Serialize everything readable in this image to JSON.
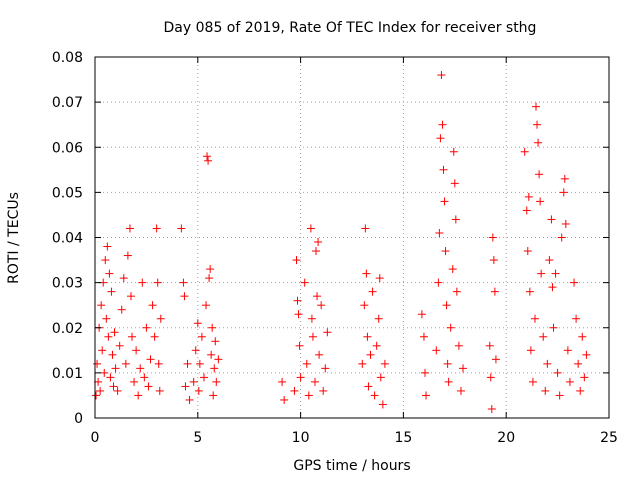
{
  "chart_data": {
    "type": "scatter",
    "title": "Day 085 of 2019, Rate Of TEC Index for receiver sthg",
    "xlabel": "GPS time / hours",
    "ylabel": "ROTI / TECUs",
    "xlim": [
      0,
      25
    ],
    "ylim": [
      0,
      0.08
    ],
    "xticks": [
      0,
      5,
      10,
      15,
      20,
      25
    ],
    "xtick_labels": [
      "0",
      "5",
      "10",
      "15",
      "20",
      "25"
    ],
    "yticks": [
      0,
      0.01,
      0.02,
      0.03,
      0.04,
      0.05,
      0.06,
      0.07,
      0.08
    ],
    "ytick_labels": [
      "0",
      "0.01",
      "0.02",
      "0.03",
      "0.04",
      "0.05",
      "0.06",
      "0.07",
      "0.08"
    ],
    "grid": true,
    "legend": "none",
    "marker": "+",
    "color": "#ff0000",
    "series": [
      {
        "name": "ROTI",
        "points": [
          [
            0.05,
            0.005
          ],
          [
            0.1,
            0.012
          ],
          [
            0.15,
            0.008
          ],
          [
            0.2,
            0.02
          ],
          [
            0.25,
            0.006
          ],
          [
            0.3,
            0.025
          ],
          [
            0.35,
            0.015
          ],
          [
            0.4,
            0.03
          ],
          [
            0.45,
            0.01
          ],
          [
            0.5,
            0.035
          ],
          [
            0.55,
            0.022
          ],
          [
            0.6,
            0.038
          ],
          [
            0.65,
            0.018
          ],
          [
            0.7,
            0.032
          ],
          [
            0.75,
            0.009
          ],
          [
            0.8,
            0.028
          ],
          [
            0.85,
            0.014
          ],
          [
            0.9,
            0.007
          ],
          [
            0.95,
            0.019
          ],
          [
            1.0,
            0.011
          ],
          [
            1.1,
            0.006
          ],
          [
            1.2,
            0.016
          ],
          [
            1.3,
            0.024
          ],
          [
            1.4,
            0.031
          ],
          [
            1.5,
            0.012
          ],
          [
            1.6,
            0.036
          ],
          [
            1.7,
            0.042
          ],
          [
            1.75,
            0.027
          ],
          [
            1.8,
            0.018
          ],
          [
            1.9,
            0.008
          ],
          [
            2.0,
            0.015
          ],
          [
            2.1,
            0.005
          ],
          [
            2.2,
            0.011
          ],
          [
            2.3,
            0.03
          ],
          [
            2.4,
            0.009
          ],
          [
            2.5,
            0.02
          ],
          [
            2.6,
            0.007
          ],
          [
            2.7,
            0.013
          ],
          [
            2.8,
            0.025
          ],
          [
            2.9,
            0.018
          ],
          [
            3.0,
            0.042
          ],
          [
            3.05,
            0.03
          ],
          [
            3.1,
            0.012
          ],
          [
            3.15,
            0.006
          ],
          [
            3.2,
            0.022
          ],
          [
            4.2,
            0.042
          ],
          [
            4.3,
            0.03
          ],
          [
            4.35,
            0.027
          ],
          [
            4.4,
            0.007
          ],
          [
            4.5,
            0.012
          ],
          [
            4.6,
            0.004
          ],
          [
            4.8,
            0.008
          ],
          [
            4.9,
            0.015
          ],
          [
            5.0,
            0.021
          ],
          [
            5.05,
            0.006
          ],
          [
            5.1,
            0.012
          ],
          [
            5.2,
            0.018
          ],
          [
            5.3,
            0.009
          ],
          [
            5.4,
            0.025
          ],
          [
            5.45,
            0.058
          ],
          [
            5.5,
            0.057
          ],
          [
            5.55,
            0.031
          ],
          [
            5.6,
            0.033
          ],
          [
            5.65,
            0.014
          ],
          [
            5.7,
            0.02
          ],
          [
            5.75,
            0.005
          ],
          [
            5.8,
            0.011
          ],
          [
            5.85,
            0.017
          ],
          [
            5.9,
            0.008
          ],
          [
            6.0,
            0.013
          ],
          [
            9.1,
            0.008
          ],
          [
            9.2,
            0.004
          ],
          [
            9.7,
            0.006
          ],
          [
            9.8,
            0.035
          ],
          [
            9.85,
            0.026
          ],
          [
            9.9,
            0.023
          ],
          [
            9.95,
            0.016
          ],
          [
            10.0,
            0.009
          ],
          [
            10.2,
            0.03
          ],
          [
            10.3,
            0.012
          ],
          [
            10.4,
            0.005
          ],
          [
            10.5,
            0.042
          ],
          [
            10.55,
            0.022
          ],
          [
            10.6,
            0.018
          ],
          [
            10.7,
            0.008
          ],
          [
            10.75,
            0.037
          ],
          [
            10.8,
            0.027
          ],
          [
            10.85,
            0.039
          ],
          [
            10.9,
            0.014
          ],
          [
            11.0,
            0.025
          ],
          [
            11.1,
            0.006
          ],
          [
            11.2,
            0.011
          ],
          [
            11.3,
            0.019
          ],
          [
            13.0,
            0.012
          ],
          [
            13.1,
            0.025
          ],
          [
            13.15,
            0.042
          ],
          [
            13.2,
            0.032
          ],
          [
            13.25,
            0.018
          ],
          [
            13.3,
            0.007
          ],
          [
            13.4,
            0.014
          ],
          [
            13.5,
            0.028
          ],
          [
            13.6,
            0.005
          ],
          [
            13.7,
            0.016
          ],
          [
            13.8,
            0.022
          ],
          [
            13.85,
            0.031
          ],
          [
            13.9,
            0.009
          ],
          [
            14.0,
            0.003
          ],
          [
            14.1,
            0.012
          ],
          [
            15.9,
            0.023
          ],
          [
            16.0,
            0.018
          ],
          [
            16.05,
            0.01
          ],
          [
            16.1,
            0.005
          ],
          [
            16.6,
            0.015
          ],
          [
            16.7,
            0.03
          ],
          [
            16.75,
            0.041
          ],
          [
            16.8,
            0.062
          ],
          [
            16.85,
            0.076
          ],
          [
            16.9,
            0.065
          ],
          [
            16.95,
            0.055
          ],
          [
            17.0,
            0.048
          ],
          [
            17.05,
            0.037
          ],
          [
            17.1,
            0.025
          ],
          [
            17.15,
            0.012
          ],
          [
            17.2,
            0.008
          ],
          [
            17.3,
            0.02
          ],
          [
            17.4,
            0.033
          ],
          [
            17.45,
            0.059
          ],
          [
            17.5,
            0.052
          ],
          [
            17.55,
            0.044
          ],
          [
            17.6,
            0.028
          ],
          [
            17.7,
            0.016
          ],
          [
            17.8,
            0.006
          ],
          [
            17.9,
            0.011
          ],
          [
            19.2,
            0.016
          ],
          [
            19.25,
            0.009
          ],
          [
            19.3,
            0.002
          ],
          [
            19.35,
            0.04
          ],
          [
            19.4,
            0.035
          ],
          [
            19.45,
            0.028
          ],
          [
            19.5,
            0.013
          ],
          [
            20.9,
            0.059
          ],
          [
            21.0,
            0.046
          ],
          [
            21.05,
            0.037
          ],
          [
            21.1,
            0.049
          ],
          [
            21.15,
            0.028
          ],
          [
            21.2,
            0.015
          ],
          [
            21.3,
            0.008
          ],
          [
            21.4,
            0.022
          ],
          [
            21.45,
            0.069
          ],
          [
            21.5,
            0.065
          ],
          [
            21.55,
            0.061
          ],
          [
            21.6,
            0.054
          ],
          [
            21.65,
            0.048
          ],
          [
            21.7,
            0.032
          ],
          [
            21.8,
            0.018
          ],
          [
            21.9,
            0.006
          ],
          [
            22.0,
            0.012
          ],
          [
            22.1,
            0.035
          ],
          [
            22.2,
            0.044
          ],
          [
            22.25,
            0.029
          ],
          [
            22.3,
            0.02
          ],
          [
            22.4,
            0.032
          ],
          [
            22.5,
            0.01
          ],
          [
            22.6,
            0.005
          ],
          [
            22.7,
            0.04
          ],
          [
            22.8,
            0.05
          ],
          [
            22.85,
            0.053
          ],
          [
            22.9,
            0.043
          ],
          [
            23.0,
            0.015
          ],
          [
            23.1,
            0.008
          ],
          [
            23.3,
            0.03
          ],
          [
            23.4,
            0.022
          ],
          [
            23.5,
            0.012
          ],
          [
            23.6,
            0.006
          ],
          [
            23.7,
            0.018
          ],
          [
            23.8,
            0.009
          ],
          [
            23.9,
            0.014
          ]
        ]
      }
    ]
  }
}
